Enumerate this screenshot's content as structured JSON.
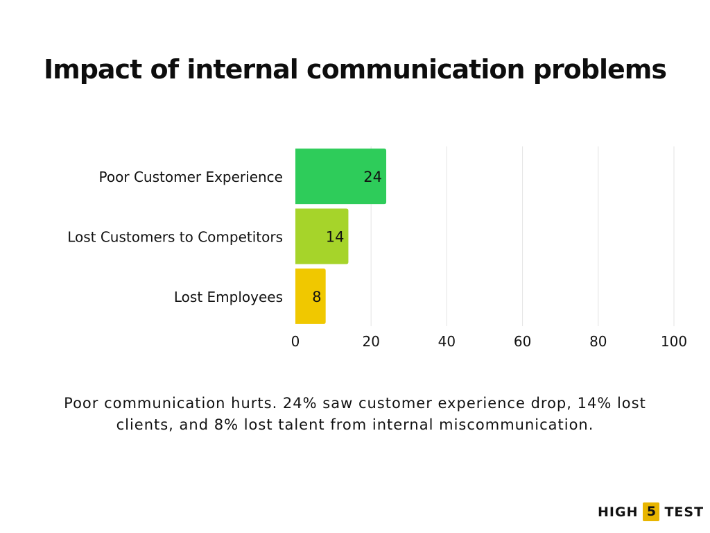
{
  "chart_data": {
    "type": "bar",
    "orientation": "horizontal",
    "title": "Impact of internal communication problems",
    "categories": [
      "Poor Customer Experience",
      "Lost Customers to Competitors",
      "Lost Employees"
    ],
    "values": [
      24,
      14,
      8
    ],
    "data_labels": [
      "24",
      "14",
      "8"
    ],
    "colors": [
      "#2ecc5a",
      "#a6d42a",
      "#f0c800"
    ],
    "xlim": [
      0,
      100
    ],
    "xticks": [
      0,
      20,
      40,
      60,
      80,
      100
    ],
    "xtick_labels": [
      "0",
      "20",
      "40",
      "60",
      "80",
      "100"
    ],
    "grid": true,
    "xlabel": "",
    "ylabel": ""
  },
  "caption": "Poor communication hurts. 24% saw customer experience drop, 14% lost clients, and 8% lost talent from internal miscommunication.",
  "logo": {
    "left_text": "HIGH",
    "number": "5",
    "right_text": "TEST",
    "accent_color": "#e8b500"
  }
}
